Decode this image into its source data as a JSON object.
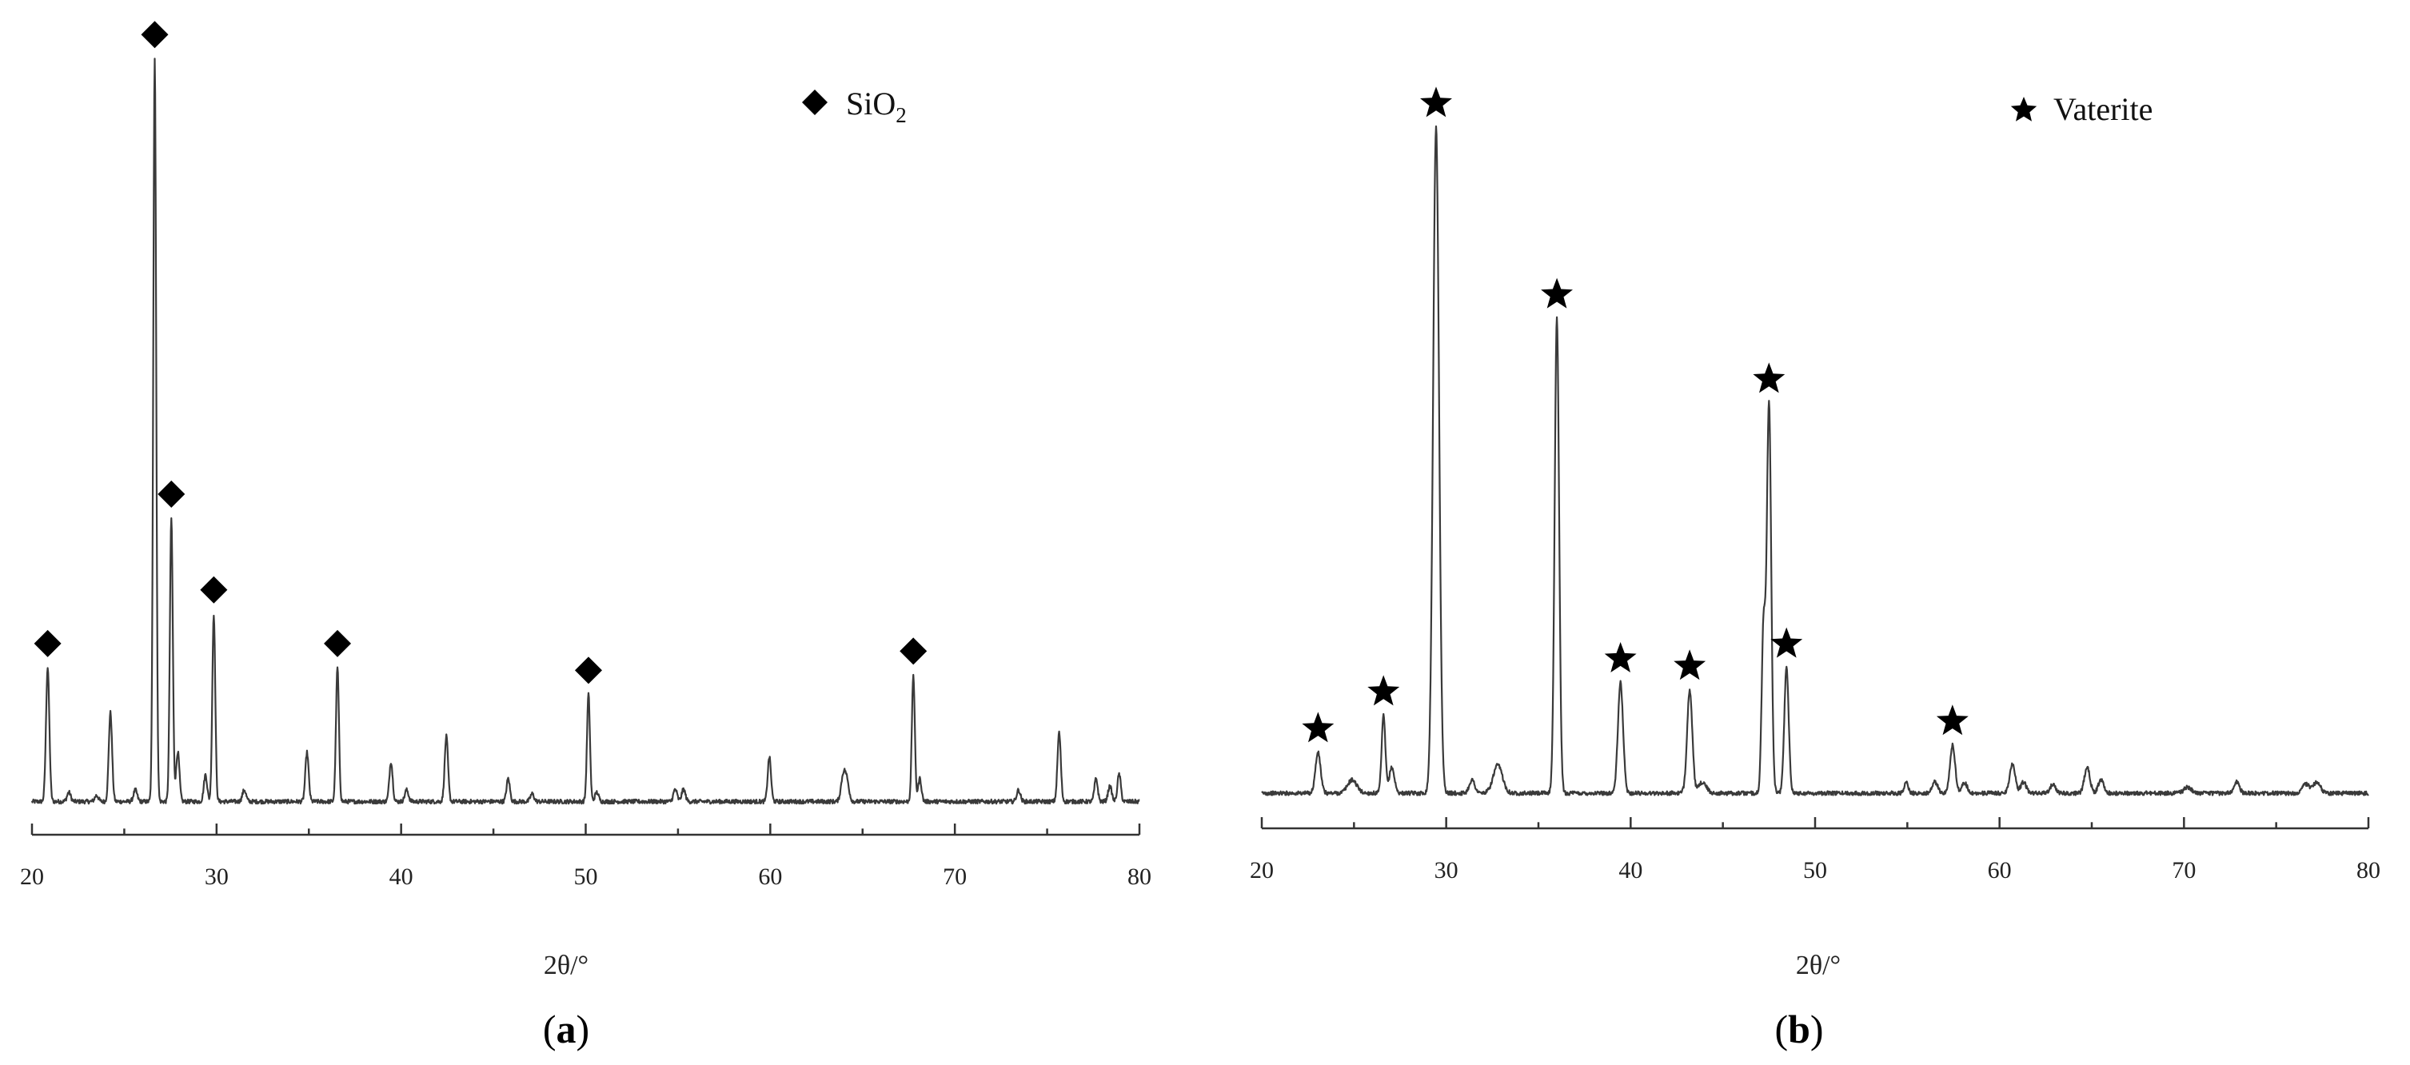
{
  "chart_data": [
    {
      "type": "line",
      "panel_label": "a",
      "xlabel": "2θ/°",
      "ylabel": "",
      "xlim": [
        20,
        80
      ],
      "xticks": [
        20,
        30,
        40,
        50,
        60,
        70,
        80
      ],
      "ylim": [
        0,
        100
      ],
      "y_axis_visible": false,
      "grid": false,
      "legend": {
        "position": "top-right",
        "marker": "diamond",
        "label_main": "SiO",
        "label_sub": "2"
      },
      "series": [
        {
          "baseline": 1.2,
          "peaks": [
            {
              "x": 20.85,
              "h": 17.5,
              "w": 0.09,
              "marker": true
            },
            {
              "x": 22.0,
              "h": 1.2,
              "w": 0.1
            },
            {
              "x": 23.5,
              "h": 0.8,
              "w": 0.1
            },
            {
              "x": 24.25,
              "h": 11.6,
              "w": 0.09
            },
            {
              "x": 25.6,
              "h": 1.5,
              "w": 0.1
            },
            {
              "x": 26.65,
              "h": 97.0,
              "w": 0.08,
              "marker": true
            },
            {
              "x": 27.55,
              "h": 37.0,
              "w": 0.08,
              "marker": true
            },
            {
              "x": 27.9,
              "h": 6.5,
              "w": 0.09
            },
            {
              "x": 29.4,
              "h": 3.5,
              "w": 0.09
            },
            {
              "x": 29.85,
              "h": 24.5,
              "w": 0.08,
              "marker": true
            },
            {
              "x": 31.5,
              "h": 1.5,
              "w": 0.1
            },
            {
              "x": 34.9,
              "h": 6.4,
              "w": 0.09
            },
            {
              "x": 36.55,
              "h": 17.5,
              "w": 0.08,
              "marker": true
            },
            {
              "x": 39.45,
              "h": 5.2,
              "w": 0.09
            },
            {
              "x": 40.3,
              "h": 1.5,
              "w": 0.1
            },
            {
              "x": 42.45,
              "h": 8.5,
              "w": 0.09
            },
            {
              "x": 45.8,
              "h": 3.0,
              "w": 0.09
            },
            {
              "x": 47.1,
              "h": 1.0,
              "w": 0.1
            },
            {
              "x": 50.15,
              "h": 14.0,
              "w": 0.08,
              "marker": true
            },
            {
              "x": 50.6,
              "h": 1.2,
              "w": 0.1
            },
            {
              "x": 54.85,
              "h": 1.6,
              "w": 0.1
            },
            {
              "x": 55.3,
              "h": 1.6,
              "w": 0.1
            },
            {
              "x": 59.95,
              "h": 5.8,
              "w": 0.09
            },
            {
              "x": 63.95,
              "h": 3.2,
              "w": 0.12
            },
            {
              "x": 64.15,
              "h": 2.5,
              "w": 0.12
            },
            {
              "x": 67.75,
              "h": 16.5,
              "w": 0.08,
              "marker": true
            },
            {
              "x": 68.1,
              "h": 3.0,
              "w": 0.09
            },
            {
              "x": 73.45,
              "h": 1.5,
              "w": 0.1
            },
            {
              "x": 75.65,
              "h": 9.0,
              "w": 0.09
            },
            {
              "x": 77.65,
              "h": 3.0,
              "w": 0.09
            },
            {
              "x": 78.4,
              "h": 2.0,
              "w": 0.1
            },
            {
              "x": 78.9,
              "h": 3.6,
              "w": 0.09
            }
          ]
        }
      ]
    },
    {
      "type": "line",
      "panel_label": "b",
      "xlabel": "2θ/°",
      "ylabel": "",
      "xlim": [
        20,
        80
      ],
      "xticks": [
        20,
        30,
        40,
        50,
        60,
        70,
        80
      ],
      "ylim": [
        0,
        100
      ],
      "y_axis_visible": false,
      "grid": false,
      "legend": {
        "position": "top-right",
        "marker": "star",
        "label_main": "Vaterite",
        "label_sub": ""
      },
      "series": [
        {
          "baseline": 1.3,
          "peaks": [
            {
              "x": 23.05,
              "h": 5.5,
              "w": 0.14,
              "marker": true
            },
            {
              "x": 24.9,
              "h": 1.8,
              "w": 0.25
            },
            {
              "x": 26.6,
              "h": 10.5,
              "w": 0.1,
              "marker": true
            },
            {
              "x": 27.05,
              "h": 3.5,
              "w": 0.14
            },
            {
              "x": 29.45,
              "h": 90.5,
              "w": 0.16,
              "marker": true
            },
            {
              "x": 31.4,
              "h": 1.8,
              "w": 0.15
            },
            {
              "x": 32.8,
              "h": 3.8,
              "w": 0.25
            },
            {
              "x": 36.0,
              "h": 64.5,
              "w": 0.12,
              "marker": true
            },
            {
              "x": 39.45,
              "h": 15.0,
              "w": 0.14,
              "marker": true
            },
            {
              "x": 43.2,
              "h": 14.0,
              "w": 0.14,
              "marker": true
            },
            {
              "x": 43.9,
              "h": 1.5,
              "w": 0.2
            },
            {
              "x": 47.2,
              "h": 22.0,
              "w": 0.1
            },
            {
              "x": 47.5,
              "h": 53.0,
              "w": 0.12,
              "marker": true
            },
            {
              "x": 48.45,
              "h": 17.0,
              "w": 0.12,
              "marker": true
            },
            {
              "x": 54.95,
              "h": 1.5,
              "w": 0.1
            },
            {
              "x": 56.5,
              "h": 1.5,
              "w": 0.15
            },
            {
              "x": 57.45,
              "h": 6.5,
              "w": 0.14,
              "marker": true
            },
            {
              "x": 58.1,
              "h": 1.4,
              "w": 0.15
            },
            {
              "x": 60.7,
              "h": 4.0,
              "w": 0.15
            },
            {
              "x": 61.3,
              "h": 1.5,
              "w": 0.15
            },
            {
              "x": 62.9,
              "h": 1.2,
              "w": 0.15
            },
            {
              "x": 64.75,
              "h": 3.5,
              "w": 0.15
            },
            {
              "x": 65.5,
              "h": 1.8,
              "w": 0.15
            },
            {
              "x": 70.2,
              "h": 0.8,
              "w": 0.2
            },
            {
              "x": 72.85,
              "h": 1.6,
              "w": 0.15
            },
            {
              "x": 76.6,
              "h": 1.2,
              "w": 0.2
            },
            {
              "x": 77.2,
              "h": 1.4,
              "w": 0.2
            }
          ]
        }
      ]
    }
  ]
}
